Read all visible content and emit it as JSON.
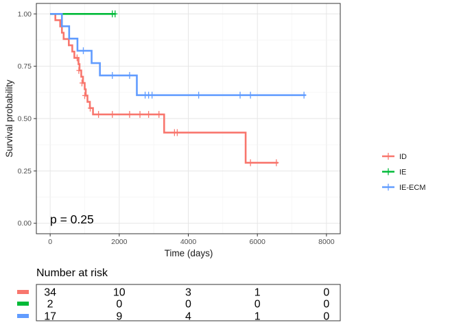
{
  "chart_data": {
    "type": "line",
    "subtype": "kaplan-meier step",
    "xlabel": "Time (days)",
    "ylabel": "Survival probability",
    "xlim": [
      -400,
      8400
    ],
    "ylim": [
      -0.05,
      1.05
    ],
    "x_ticks": [
      0,
      2000,
      4000,
      6000,
      8000
    ],
    "x_tick_labels": [
      "0",
      "2000",
      "4000",
      "6000",
      "8000"
    ],
    "y_ticks": [
      0,
      0.25,
      0.5,
      0.75,
      1.0
    ],
    "y_tick_labels": [
      "0.00",
      "0.25",
      "0.50",
      "0.75",
      "1.00"
    ],
    "grid": true,
    "legend_position": "right",
    "annotation": "p = 0.25",
    "series": [
      {
        "name": "ID",
        "color": "#F8766D",
        "steps": [
          [
            0,
            1.0
          ],
          [
            150,
            0.97
          ],
          [
            290,
            0.94
          ],
          [
            340,
            0.91
          ],
          [
            390,
            0.88
          ],
          [
            540,
            0.85
          ],
          [
            640,
            0.82
          ],
          [
            700,
            0.79
          ],
          [
            820,
            0.76
          ],
          [
            850,
            0.73
          ],
          [
            900,
            0.7
          ],
          [
            950,
            0.67
          ],
          [
            1000,
            0.64
          ],
          [
            1030,
            0.61
          ],
          [
            1080,
            0.58
          ],
          [
            1150,
            0.55
          ],
          [
            1240,
            0.52
          ],
          [
            3300,
            0.433
          ],
          [
            5660,
            0.289
          ],
          [
            6600,
            0.289
          ]
        ],
        "censored": [
          [
            780,
            0.79
          ],
          [
            830,
            0.73
          ],
          [
            920,
            0.67
          ],
          [
            1000,
            0.61
          ],
          [
            1160,
            0.55
          ],
          [
            1400,
            0.52
          ],
          [
            1800,
            0.52
          ],
          [
            2300,
            0.52
          ],
          [
            2600,
            0.52
          ],
          [
            2850,
            0.52
          ],
          [
            3150,
            0.52
          ],
          [
            3600,
            0.433
          ],
          [
            3680,
            0.433
          ],
          [
            5800,
            0.289
          ],
          [
            6550,
            0.289
          ]
        ]
      },
      {
        "name": "IE",
        "color": "#00BA38",
        "steps": [
          [
            0,
            1.0
          ],
          [
            1900,
            1.0
          ]
        ],
        "censored": [
          [
            1800,
            1.0
          ],
          [
            1880,
            1.0
          ]
        ]
      },
      {
        "name": "IE-ECM",
        "color": "#619CFF",
        "steps": [
          [
            0,
            1.0
          ],
          [
            340,
            0.941
          ],
          [
            550,
            0.882
          ],
          [
            790,
            0.824
          ],
          [
            1200,
            0.765
          ],
          [
            1440,
            0.706
          ],
          [
            2510,
            0.612
          ],
          [
            7400,
            0.612
          ]
        ],
        "censored": [
          [
            960,
            0.824
          ],
          [
            1800,
            0.706
          ],
          [
            2300,
            0.706
          ],
          [
            2750,
            0.612
          ],
          [
            2850,
            0.612
          ],
          [
            2950,
            0.612
          ],
          [
            4300,
            0.612
          ],
          [
            5500,
            0.612
          ],
          [
            5800,
            0.612
          ],
          [
            7350,
            0.612
          ]
        ]
      }
    ]
  },
  "risk_table": {
    "title": "Number at risk",
    "times": [
      0,
      2000,
      4000,
      6000,
      8000
    ],
    "rows": [
      {
        "group": "ID",
        "color": "#F8766D",
        "values": [
          "34",
          "10",
          "3",
          "1",
          "0"
        ]
      },
      {
        "group": "IE",
        "color": "#00BA38",
        "values": [
          "2",
          "0",
          "0",
          "0",
          "0"
        ]
      },
      {
        "group": "IE-ECM",
        "color": "#619CFF",
        "values": [
          "17",
          "9",
          "4",
          "1",
          "0"
        ]
      }
    ]
  }
}
